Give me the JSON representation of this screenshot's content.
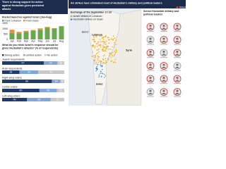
{
  "left": {
    "title": "There is strong support for action against Hezbollah given persistent attacks",
    "rockets": {
      "title": "Rocket launches against Israel (Jan-Aug)",
      "categories": [
        "Jan",
        "Feb",
        "Mar",
        "Apr",
        "May",
        "Jun",
        "Jul",
        "Aug"
      ],
      "series": [
        {
          "name": "From Lebanon",
          "color": "#6aa84f",
          "values": [
            600,
            550,
            700,
            800,
            900,
            1100,
            1000,
            1200
          ]
        },
        {
          "name": "From Gaza",
          "color": "#e69138",
          "values": [
            300,
            150,
            100,
            80,
            120,
            60,
            50,
            40
          ]
        }
      ],
      "ylim": [
        0,
        1500
      ],
      "yticks": [
        0,
        500,
        1000,
        1500
      ]
    },
    "survey": {
      "title": "What do you think Israel's response should be given Hezbollah's attacks? (% of respondents)",
      "series": [
        {
          "name": "Strong action",
          "color": "#1e3a6e"
        },
        {
          "name": "Limited action",
          "color": "#7fa7d8"
        },
        {
          "name": "No action",
          "color": "#c9c9c9"
        }
      ],
      "rows": [
        {
          "label": "Jewish respondents",
          "values": [
            67,
            22,
            11
          ]
        },
        {
          "label": "Arab respondents",
          "values": [
            28,
            30,
            42
          ]
        },
        {
          "label": "Right-wing voters",
          "values": [
            80,
            14,
            6
          ]
        },
        {
          "label": "Centre voters",
          "values": [
            60,
            28,
            12
          ]
        },
        {
          "label": "Left-wing voters",
          "values": [
            40,
            38,
            22
          ]
        }
      ]
    }
  },
  "map": {
    "title": "Air strikes have eliminated most of Hezbollah's military and political leaders",
    "legend_title": "Exchange of fire September 17-23",
    "legend": [
      {
        "name": "Israeli strikes on Lebanon",
        "color": "#f0a500"
      },
      {
        "name": "Hezbollah strikes on Israel",
        "color": "#3d85c6"
      }
    ],
    "labels": [
      "Lebanon",
      "Israel",
      "Syria",
      "Beirut"
    ]
  },
  "leaders": {
    "title": "Senior Hezbollah military and political leaders",
    "legend": "Killed"
  }
}
